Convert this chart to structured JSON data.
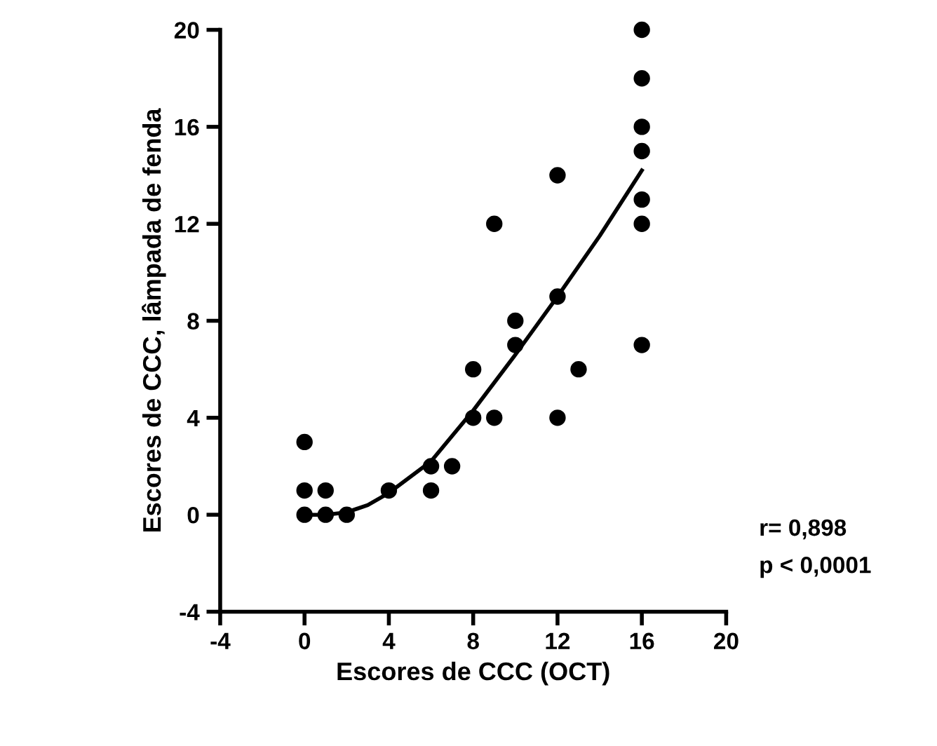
{
  "chart_data": {
    "type": "scatter",
    "xlabel": "Escores de CCC (OCT)",
    "ylabel": "Escores de CCC, lâmpada de fenda",
    "annotations": [
      "r= 0,898",
      "p < 0,0001"
    ],
    "xlim": [
      -4,
      20
    ],
    "ylim": [
      -4,
      20
    ],
    "xticks": [
      -4,
      0,
      4,
      8,
      12,
      16,
      20
    ],
    "yticks": [
      -4,
      0,
      4,
      8,
      12,
      16,
      20
    ],
    "grid": false,
    "legend": false,
    "marker": "circle",
    "series": [
      {
        "color": "#000000",
        "x": [
          0,
          0,
          0,
          1,
          1,
          2,
          4,
          6,
          6,
          7,
          8,
          8,
          9,
          9,
          10,
          10,
          12,
          12,
          12,
          13,
          16,
          16,
          16,
          16,
          16,
          16,
          16
        ],
        "values": [
          0,
          1,
          3,
          0,
          1,
          0,
          1,
          1,
          2,
          2,
          4,
          6,
          4,
          12,
          7,
          8,
          4,
          9,
          14,
          6,
          7,
          12,
          13,
          15,
          16,
          18,
          20
        ]
      },
      {
        "type": "line",
        "color": "#000000",
        "line_style": "solid",
        "marker": "none",
        "x": [
          0,
          1,
          2,
          3,
          4,
          6,
          8,
          10,
          12,
          14,
          16
        ],
        "values": [
          0,
          0,
          0.1,
          0.4,
          0.9,
          2.2,
          4.3,
          6.6,
          9.0,
          11.5,
          14.2
        ]
      }
    ]
  }
}
